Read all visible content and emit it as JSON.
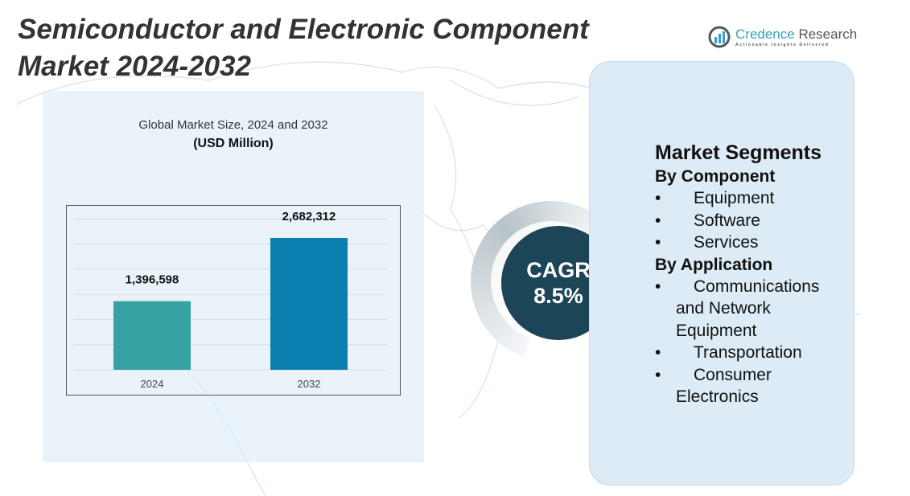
{
  "header": {
    "title_line1": "Semiconductor and Electronic Component",
    "title_line2": "Market  2024-2032"
  },
  "logo": {
    "name_part1": "Credence",
    "name_part2": " Research",
    "tagline": "Actionable Insights Delivered"
  },
  "chart_data": {
    "type": "bar",
    "title": "Global Market Size, 2024 and 2032",
    "unit": "(USD Million)",
    "categories": [
      "2024",
      "2032"
    ],
    "values": [
      1396598,
      2682312
    ],
    "value_labels": [
      "1,396,598",
      "2,682,312"
    ],
    "colors": [
      "#35a3a3",
      "#0a7fb0"
    ],
    "grid": true
  },
  "cagr": {
    "label": "CAGR",
    "value": "8.5%"
  },
  "segments": {
    "title": "Market Segments",
    "groups": [
      {
        "heading": "By Component",
        "items": [
          "Equipment",
          "Software",
          "Services"
        ]
      },
      {
        "heading": "By Application",
        "items": [
          "Communications and Network Equipment",
          "Transportation",
          "Consumer Electronics"
        ]
      }
    ]
  },
  "colors": {
    "panel": "#dcebf5",
    "cagr_circle": "#1d4558",
    "accent": "#3a9fc0"
  }
}
